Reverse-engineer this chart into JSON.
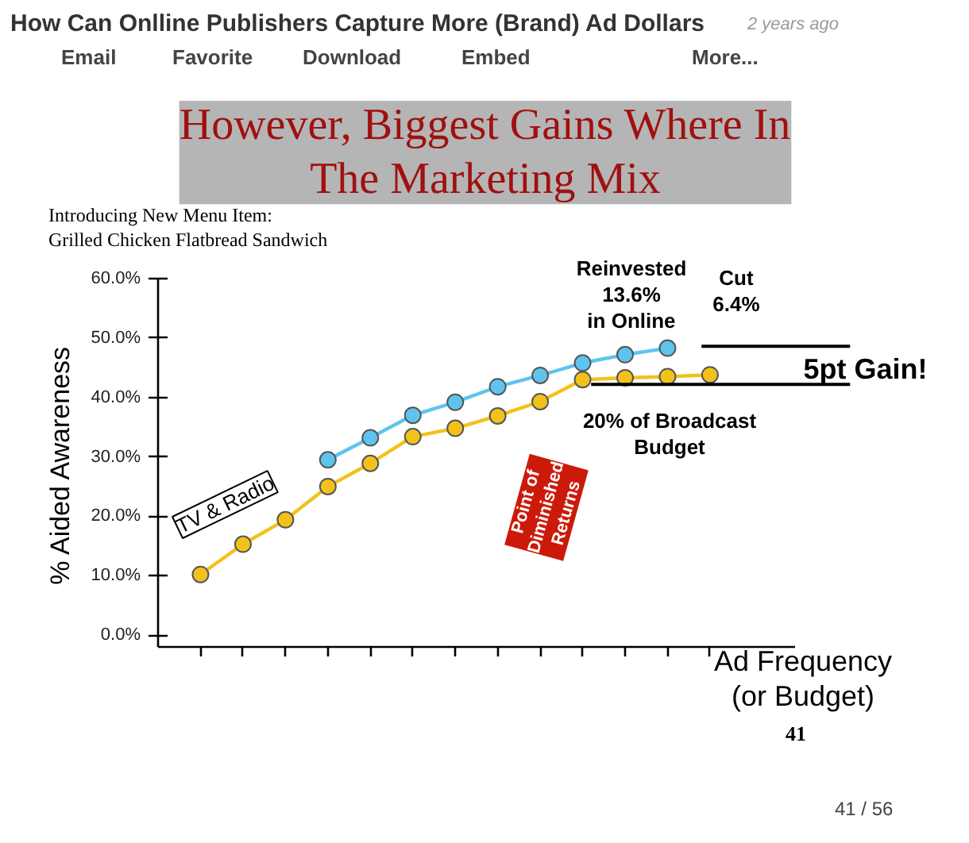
{
  "chart_data": {
    "type": "line",
    "title": "However, Biggest Gains Where In\nThe Marketing Mix",
    "subtitle": "Introducing New Menu Item:\n        Grilled Chicken Flatbread Sandwich",
    "xlabel": "Ad Frequency\n(or Budget)",
    "ylabel": "% Aided Awareness",
    "categories": [
      null,
      null,
      null,
      null,
      null,
      null,
      null,
      null,
      null,
      null,
      null,
      null,
      null
    ],
    "ylim": [
      -2,
      60
    ],
    "yticks": [
      {
        "value": 0,
        "label": "0.0%"
      },
      {
        "value": 10,
        "label": "10.0%"
      },
      {
        "value": 20,
        "label": "20.0%"
      },
      {
        "value": 30,
        "label": "30.0%"
      },
      {
        "value": 40,
        "label": "40.0%"
      },
      {
        "value": 50,
        "label": "50.0%"
      },
      {
        "value": 60,
        "label": "60.0%"
      }
    ],
    "grid": false,
    "marker": "circle",
    "line_style": "solid",
    "series": [
      {
        "color": "#f2c21b",
        "values": [
          10.2,
          15.3,
          19.4,
          25.0,
          28.9,
          33.4,
          34.8,
          36.9,
          39.3,
          43.0,
          43.3,
          43.5,
          43.8
        ]
      },
      {
        "color": "#5ec4ee",
        "values": [
          null,
          null,
          null,
          29.5,
          33.2,
          37.0,
          39.2,
          41.8,
          43.7,
          45.8,
          47.2,
          48.3,
          null
        ]
      }
    ],
    "ref_lines": [
      {
        "axis": "y",
        "value": 48.6,
        "label": "5pt Gain!",
        "color": "#000000"
      },
      {
        "axis": "y",
        "value": 42.2,
        "label": null,
        "color": "#000000"
      }
    ],
    "annotations": [
      "How Can Onlline Publishers Capture More (Brand) Ad Dollars",
      "2 years ago",
      "Email",
      "Favorite",
      "Download",
      "Embed",
      "More...",
      "TV & Radio",
      "Reinvested\n13.6%\nin Online",
      "Cut\n6.4%",
      "20% of Broadcast\nBudget",
      "Point of\nDiminished\nReturns",
      "41",
      "41 / 56"
    ]
  }
}
